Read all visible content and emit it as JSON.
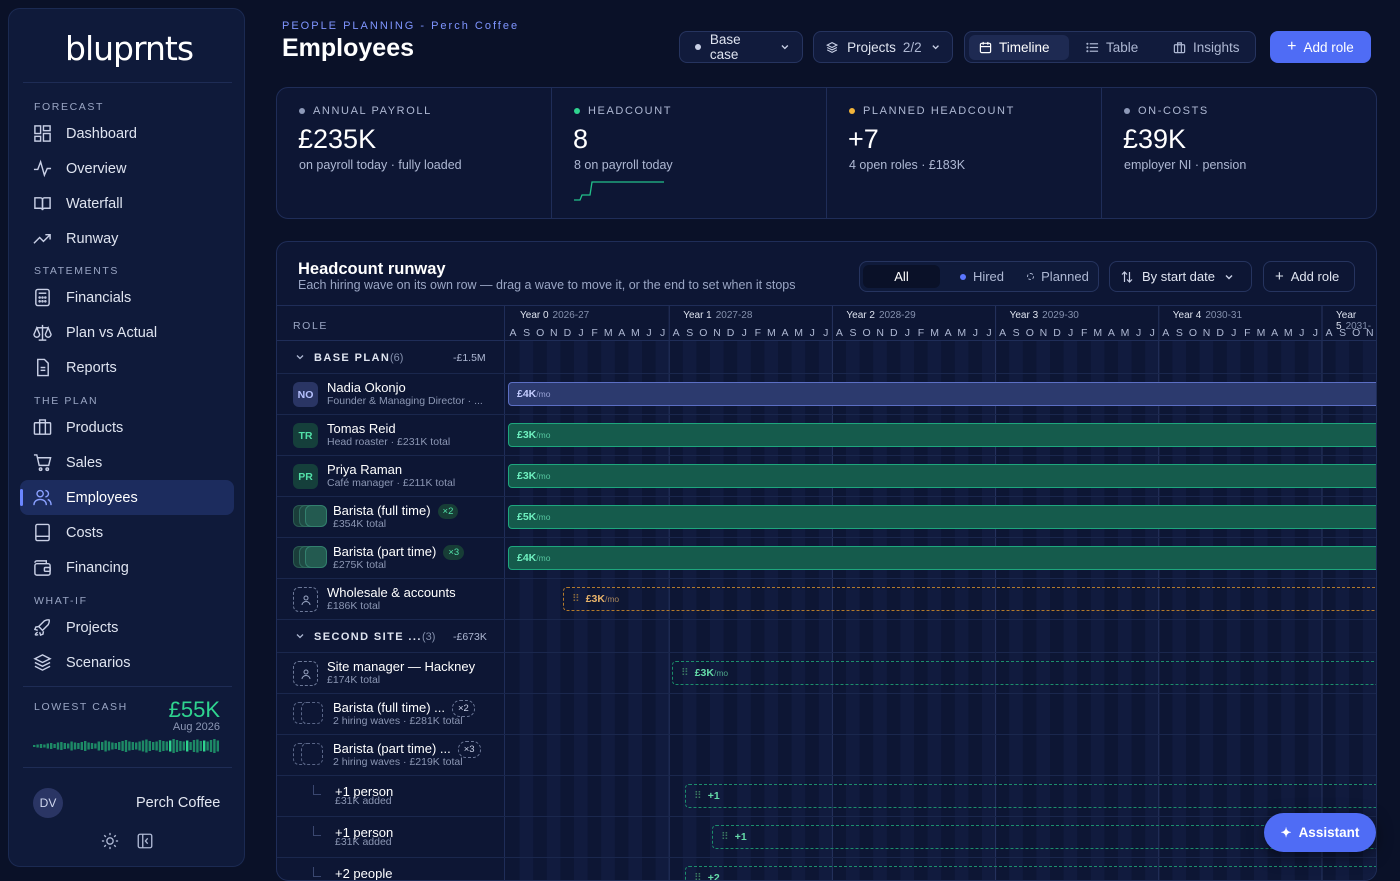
{
  "app": {
    "logo": "bluprnts"
  },
  "sidebar": {
    "sections": [
      {
        "label": "FORECAST",
        "items": [
          {
            "label": "Dashboard",
            "icon": "dashboard-icon"
          },
          {
            "label": "Overview",
            "icon": "pulse-icon"
          },
          {
            "label": "Waterfall",
            "icon": "book-icon"
          },
          {
            "label": "Runway",
            "icon": "trend-icon"
          }
        ]
      },
      {
        "label": "STATEMENTS",
        "items": [
          {
            "label": "Financials",
            "icon": "calculator-icon"
          },
          {
            "label": "Plan vs Actual",
            "icon": "scale-icon"
          },
          {
            "label": "Reports",
            "icon": "document-icon"
          }
        ]
      },
      {
        "label": "THE PLAN",
        "items": [
          {
            "label": "Products",
            "icon": "box-icon"
          },
          {
            "label": "Sales",
            "icon": "cart-icon"
          },
          {
            "label": "Employees",
            "icon": "users-icon",
            "active": true
          },
          {
            "label": "Costs",
            "icon": "receipt-icon"
          },
          {
            "label": "Financing",
            "icon": "wallet-icon"
          }
        ]
      },
      {
        "label": "WHAT-IF",
        "items": [
          {
            "label": "Projects",
            "icon": "rocket-icon"
          },
          {
            "label": "Scenarios",
            "icon": "layers-icon"
          }
        ]
      }
    ],
    "lowest_cash": {
      "label": "LOWEST CASH",
      "value": "£55K",
      "date": "Aug 2026"
    },
    "user": {
      "initials": "DV",
      "company": "Perch Coffee"
    }
  },
  "header": {
    "eyebrow": "PEOPLE PLANNING - Perch Coffee",
    "title": "Employees",
    "scenario": "Base case",
    "projects_label": "Projects",
    "projects_count": "2/2",
    "views": [
      "Timeline",
      "Table",
      "Insights"
    ],
    "active_view": "Timeline",
    "add_role": "Add role"
  },
  "kpis": [
    {
      "label": "ANNUAL PAYROLL",
      "value": "£235K",
      "sub": "on payroll today · fully loaded",
      "color": "#8d99b8"
    },
    {
      "label": "HEADCOUNT",
      "value": "8",
      "sub": "8 on payroll today",
      "color": "#2fd48f"
    },
    {
      "label": "PLANNED HEADCOUNT",
      "value": "+7",
      "sub": "4 open roles · £183K",
      "color": "#f2b43a"
    },
    {
      "label": "ON-COSTS",
      "value": "£39K",
      "sub": "employer NI · pension",
      "color": "#8d99b8"
    }
  ],
  "runway": {
    "title": "Headcount runway",
    "subtitle": "Each hiring wave on its own row — drag a wave to move it, or the end to set when it stops",
    "filters": [
      "All",
      "Hired",
      "Planned"
    ],
    "sort": "By start date",
    "add_role": "Add role",
    "role_header": "ROLE",
    "years": [
      {
        "label": "Year 0",
        "range": "2026-27"
      },
      {
        "label": "Year 1",
        "range": "2027-28"
      },
      {
        "label": "Year 2",
        "range": "2028-29"
      },
      {
        "label": "Year 3",
        "range": "2029-30"
      },
      {
        "label": "Year 4",
        "range": "2030-31"
      },
      {
        "label": "Year 5",
        "range": "2031-"
      }
    ],
    "months": [
      "A",
      "S",
      "O",
      "N",
      "D",
      "J",
      "F",
      "M",
      "A",
      "M",
      "J",
      "J",
      "A",
      "S",
      "O",
      "N",
      "D",
      "J",
      "F",
      "M",
      "A",
      "M",
      "J",
      "J",
      "A",
      "S",
      "O",
      "N",
      "D",
      "J",
      "F",
      "M",
      "A",
      "M",
      "J",
      "J",
      "A",
      "S",
      "O",
      "N",
      "D",
      "J",
      "F",
      "M",
      "A",
      "M",
      "J",
      "J",
      "A",
      "S",
      "O",
      "N",
      "D",
      "J",
      "F",
      "M",
      "A",
      "M",
      "J",
      "J",
      "A",
      "S",
      "O",
      "N"
    ],
    "groups": [
      {
        "name": "BASE PLAN",
        "count": "(6)",
        "total": "-£1.5M"
      },
      {
        "name": "SECOND SITE ...",
        "count": "(3)",
        "total": "-£673K"
      }
    ],
    "rows": [
      {
        "initials": "NO",
        "name": "Nadia Okonjo",
        "sub": "Founder & Managing Director · ...",
        "bar": "£4K",
        "unit": "/mo"
      },
      {
        "initials": "TR",
        "name": "Tomas Reid",
        "sub": "Head roaster · £231K total",
        "bar": "£3K",
        "unit": "/mo"
      },
      {
        "initials": "PR",
        "name": "Priya Raman",
        "sub": "Café manager · £211K total",
        "bar": "£3K",
        "unit": "/mo"
      },
      {
        "name": "Barista (full time)",
        "badge": "×2",
        "sub": "£354K total",
        "bar": "£5K",
        "unit": "/mo"
      },
      {
        "name": "Barista (part time)",
        "badge": "×3",
        "sub": "£275K total",
        "bar": "£4K",
        "unit": "/mo"
      },
      {
        "name": "Wholesale & accounts",
        "sub": "£186K total",
        "bar": "£3K",
        "unit": "/mo"
      },
      {
        "name": "Site manager — Hackney",
        "sub": "£174K total",
        "bar": "£3K",
        "unit": "/mo"
      },
      {
        "name": "Barista (full time) ...",
        "badge": "×2",
        "sub": "2 hiring waves · £281K total"
      },
      {
        "name": "Barista (part time) ...",
        "badge": "×3",
        "sub": "2 hiring waves · £219K total"
      },
      {
        "name": "+1 person",
        "sub": "£31K added",
        "bar": "+1"
      },
      {
        "name": "+1 person",
        "sub": "£31K added",
        "bar": "+1"
      },
      {
        "name": "+2 people",
        "sub": "",
        "bar": "+2"
      }
    ]
  },
  "assistant": "Assistant"
}
